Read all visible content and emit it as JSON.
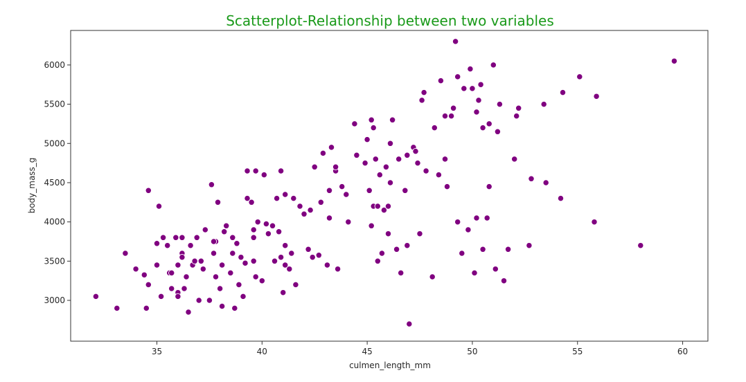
{
  "chart_data": {
    "type": "scatter",
    "title": "Scatterplot-Relationship between two variables",
    "title_color": "#1a9a1a",
    "xlabel": "culmen_length_mm",
    "ylabel": "body_mass_g",
    "xlim": [
      30.9,
      61.2
    ],
    "ylim": [
      2480,
      6440
    ],
    "xticks": [
      35,
      40,
      45,
      50,
      55,
      60
    ],
    "yticks": [
      3000,
      3500,
      4000,
      4500,
      5000,
      5500,
      6000
    ],
    "grid": false,
    "marker_color": "#800080",
    "marker_edge_color": "#ffffff",
    "points": [
      [
        32.1,
        3050
      ],
      [
        33.1,
        2900
      ],
      [
        33.5,
        3600
      ],
      [
        34.0,
        3400
      ],
      [
        34.4,
        3325
      ],
      [
        34.5,
        2900
      ],
      [
        34.6,
        4400
      ],
      [
        34.6,
        3200
      ],
      [
        35.0,
        3450
      ],
      [
        35.0,
        3725
      ],
      [
        35.1,
        4200
      ],
      [
        35.2,
        3050
      ],
      [
        35.3,
        3800
      ],
      [
        35.5,
        3700
      ],
      [
        35.6,
        3350
      ],
      [
        35.7,
        3150
      ],
      [
        35.7,
        3350
      ],
      [
        35.9,
        3800
      ],
      [
        36.0,
        3450
      ],
      [
        36.0,
        3100
      ],
      [
        36.0,
        3050
      ],
      [
        36.2,
        3600
      ],
      [
        36.3,
        3150
      ],
      [
        36.2,
        3550
      ],
      [
        36.4,
        3300
      ],
      [
        36.5,
        2850
      ],
      [
        36.6,
        3700
      ],
      [
        36.7,
        3450
      ],
      [
        36.8,
        3500
      ],
      [
        36.9,
        3800
      ],
      [
        37.0,
        3000
      ],
      [
        37.1,
        3500
      ],
      [
        37.2,
        3400
      ],
      [
        37.3,
        3900
      ],
      [
        37.5,
        3000
      ],
      [
        37.6,
        4475
      ],
      [
        37.7,
        3600
      ],
      [
        37.8,
        3300
      ],
      [
        37.8,
        3750
      ],
      [
        37.9,
        4250
      ],
      [
        38.0,
        3150
      ],
      [
        38.1,
        2925
      ],
      [
        38.1,
        3450
      ],
      [
        38.2,
        3875
      ],
      [
        38.3,
        3950
      ],
      [
        38.5,
        3350
      ],
      [
        38.6,
        3800
      ],
      [
        38.7,
        2900
      ],
      [
        38.8,
        3725
      ],
      [
        38.9,
        3200
      ],
      [
        39.0,
        3550
      ],
      [
        39.1,
        3050
      ],
      [
        39.2,
        3475
      ],
      [
        39.3,
        4650
      ],
      [
        39.5,
        4250
      ],
      [
        39.6,
        3500
      ],
      [
        39.6,
        3800
      ],
      [
        39.7,
        3300
      ],
      [
        39.8,
        4000
      ],
      [
        40.0,
        3250
      ],
      [
        40.1,
        4600
      ],
      [
        40.2,
        3975
      ],
      [
        40.3,
        3850
      ],
      [
        40.5,
        3950
      ],
      [
        40.6,
        3500
      ],
      [
        40.7,
        4300
      ],
      [
        40.8,
        3875
      ],
      [
        40.9,
        4650
      ],
      [
        41.0,
        3100
      ],
      [
        41.1,
        3700
      ],
      [
        41.1,
        4350
      ],
      [
        41.3,
        3400
      ],
      [
        41.4,
        3600
      ],
      [
        41.5,
        4300
      ],
      [
        41.6,
        3200
      ],
      [
        41.8,
        4200
      ],
      [
        42.0,
        4100
      ],
      [
        42.2,
        3650
      ],
      [
        42.4,
        3550
      ],
      [
        42.5,
        4700
      ],
      [
        42.7,
        3575
      ],
      [
        42.9,
        4875
      ],
      [
        43.1,
        3450
      ],
      [
        43.2,
        4400
      ],
      [
        43.3,
        4950
      ],
      [
        43.5,
        4650
      ],
      [
        43.6,
        3400
      ],
      [
        43.8,
        4450
      ],
      [
        44.0,
        4350
      ],
      [
        44.1,
        4000
      ],
      [
        44.4,
        5250
      ],
      [
        44.5,
        4850
      ],
      [
        44.9,
        4750
      ],
      [
        45.0,
        5050
      ],
      [
        45.1,
        4400
      ],
      [
        45.2,
        3950
      ],
      [
        45.2,
        5300
      ],
      [
        45.3,
        4200
      ],
      [
        45.4,
        4800
      ],
      [
        45.5,
        3500
      ],
      [
        45.6,
        4600
      ],
      [
        45.7,
        3600
      ],
      [
        45.8,
        4150
      ],
      [
        45.9,
        4700
      ],
      [
        46.0,
        3850
      ],
      [
        46.1,
        4500
      ],
      [
        46.2,
        5300
      ],
      [
        46.4,
        3650
      ],
      [
        46.5,
        4800
      ],
      [
        46.6,
        3350
      ],
      [
        46.8,
        4400
      ],
      [
        46.9,
        3700
      ],
      [
        47.0,
        2700
      ],
      [
        47.2,
        4950
      ],
      [
        47.3,
        4900
      ],
      [
        47.5,
        3850
      ],
      [
        47.6,
        5550
      ],
      [
        47.8,
        4650
      ],
      [
        48.1,
        3300
      ],
      [
        48.2,
        5200
      ],
      [
        48.4,
        4600
      ],
      [
        48.5,
        5800
      ],
      [
        48.7,
        5350
      ],
      [
        48.8,
        4450
      ],
      [
        49.0,
        5350
      ],
      [
        49.1,
        5450
      ],
      [
        49.2,
        6300
      ],
      [
        49.3,
        5850
      ],
      [
        49.5,
        3600
      ],
      [
        49.6,
        5700
      ],
      [
        49.8,
        3900
      ],
      [
        50.0,
        5700
      ],
      [
        50.1,
        3350
      ],
      [
        50.2,
        4050
      ],
      [
        50.4,
        5750
      ],
      [
        50.5,
        3650
      ],
      [
        50.7,
        4050
      ],
      [
        50.8,
        4450
      ],
      [
        51.0,
        6000
      ],
      [
        51.1,
        3400
      ],
      [
        51.3,
        5500
      ],
      [
        51.5,
        3250
      ],
      [
        51.7,
        3650
      ],
      [
        52.0,
        4800
      ],
      [
        52.2,
        5450
      ],
      [
        52.7,
        3700
      ],
      [
        52.8,
        4550
      ],
      [
        53.4,
        5500
      ],
      [
        53.5,
        4500
      ],
      [
        54.2,
        4300
      ],
      [
        54.3,
        5650
      ],
      [
        55.1,
        5850
      ],
      [
        55.8,
        4000
      ],
      [
        55.9,
        5600
      ],
      [
        58.0,
        3700
      ],
      [
        59.6,
        6050
      ],
      [
        39.3,
        4300
      ],
      [
        39.7,
        4650
      ],
      [
        42.8,
        4250
      ],
      [
        43.5,
        4700
      ],
      [
        45.5,
        4200
      ],
      [
        46.0,
        4200
      ],
      [
        46.9,
        4850
      ],
      [
        47.4,
        4750
      ],
      [
        48.7,
        4800
      ],
      [
        50.5,
        5200
      ],
      [
        50.8,
        5250
      ],
      [
        49.3,
        4000
      ],
      [
        36.2,
        3800
      ],
      [
        37.7,
        3750
      ],
      [
        38.6,
        3600
      ],
      [
        39.6,
        3900
      ],
      [
        40.9,
        3550
      ],
      [
        41.1,
        3450
      ],
      [
        42.3,
        4150
      ],
      [
        43.2,
        4050
      ],
      [
        45.3,
        5200
      ],
      [
        46.1,
        5000
      ],
      [
        47.7,
        5650
      ],
      [
        49.9,
        5950
      ],
      [
        50.2,
        5400
      ],
      [
        51.2,
        5150
      ],
      [
        52.1,
        5350
      ],
      [
        50.3,
        5550
      ]
    ]
  }
}
